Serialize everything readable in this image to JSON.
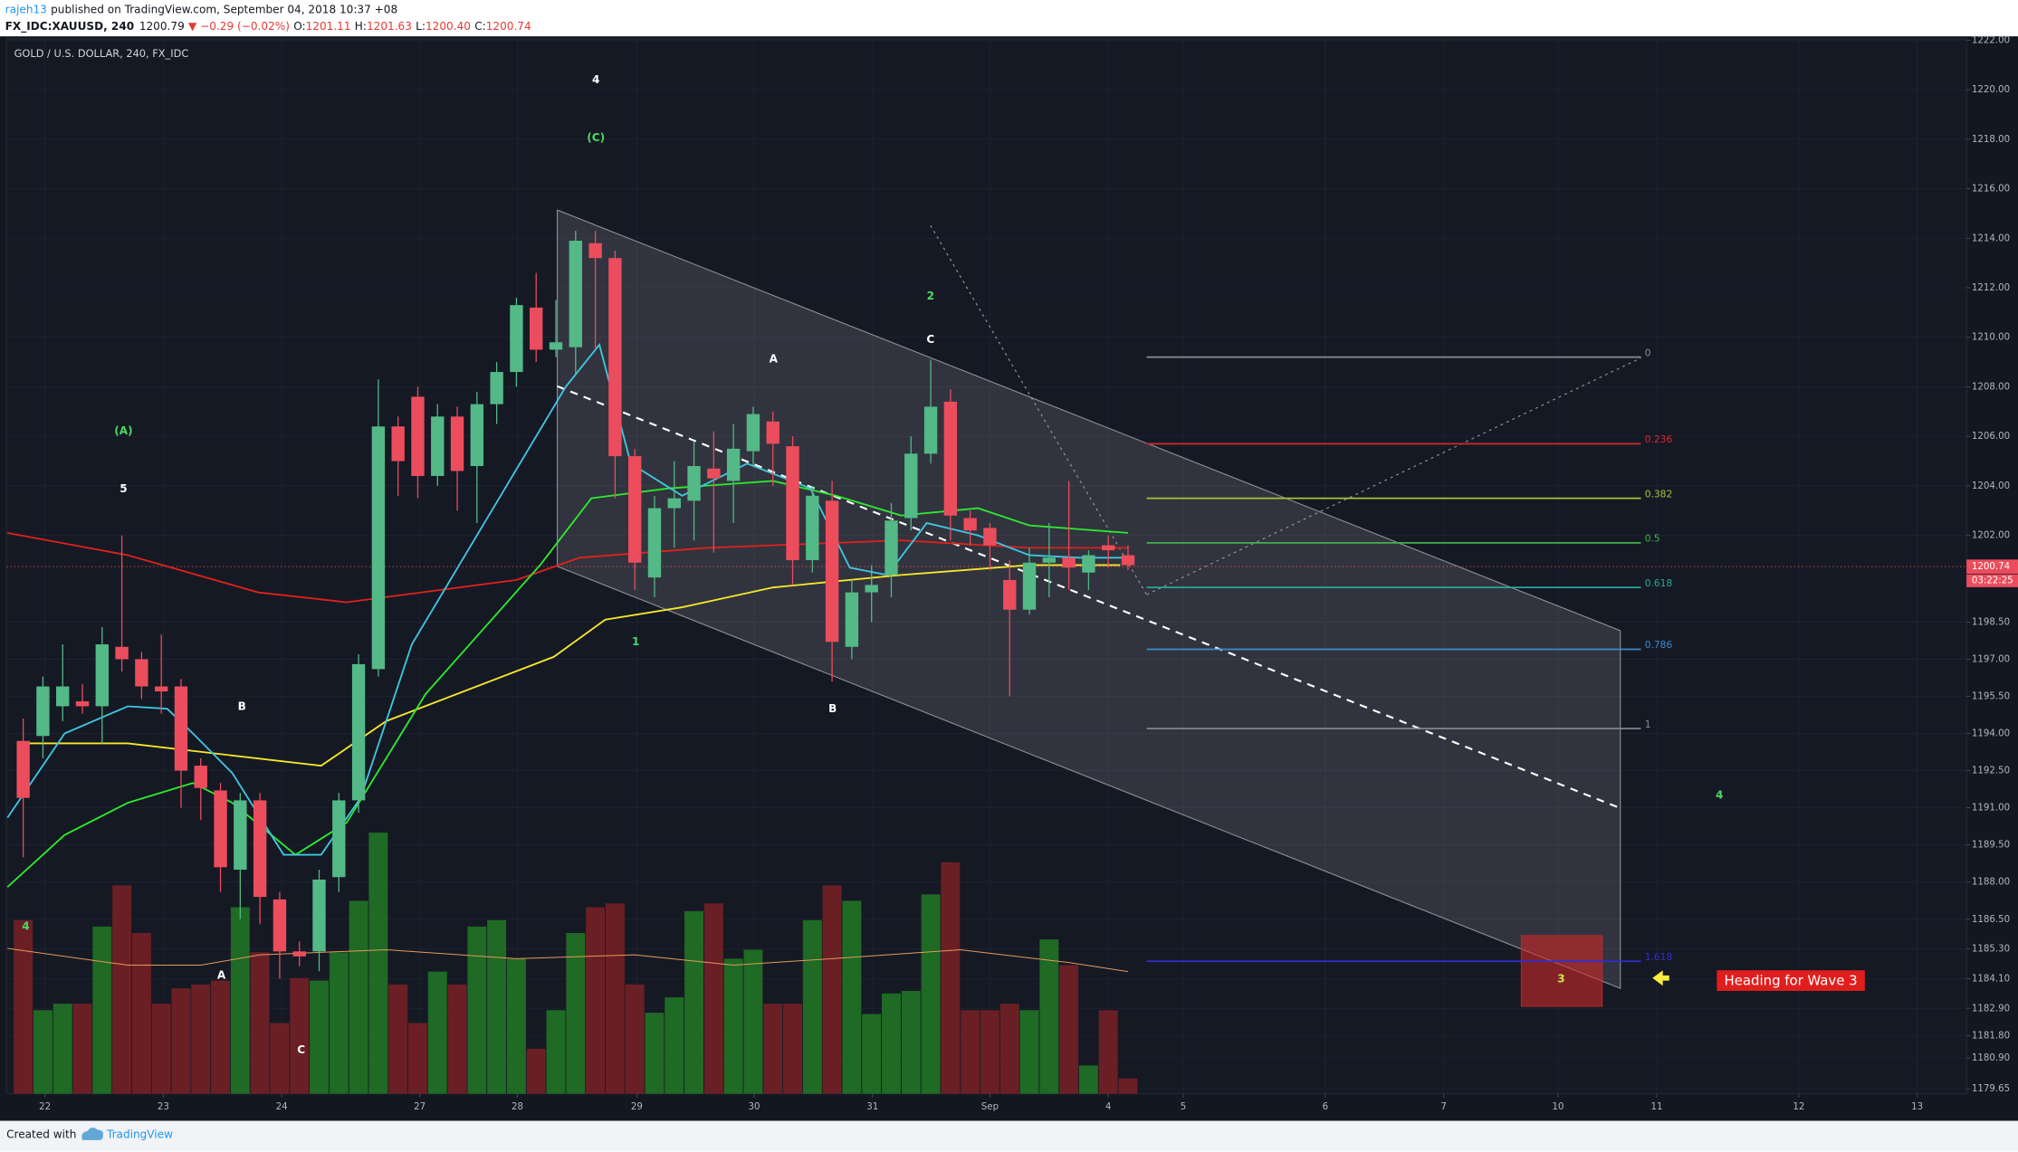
{
  "header": {
    "user": "rajeh13",
    "published": "published on TradingView.com, September 04, 2018 10:37 +08",
    "symbol": "FX_IDC:XAUUSD, 240",
    "price": "1200.79",
    "change": "▼ −0.29 (−0.02%)",
    "ohlc": [
      {
        "key": "O:",
        "value": "1201.11"
      },
      {
        "key": "H:",
        "value": "1201.63"
      },
      {
        "key": "L:",
        "value": "1200.40"
      },
      {
        "key": "C:",
        "value": "1200.74"
      }
    ]
  },
  "chart_data": {
    "type": "candlestick",
    "title": "GOLD / U.S. DOLLAR, 240, FX_IDC",
    "colors": {
      "up": "#53b987",
      "down": "#eb4d5c",
      "volume_up": "#1f6a24",
      "volume_down": "#6a1f25"
    },
    "open": [
      1193.7,
      1193.9,
      1195.1,
      1195.3,
      1195.1,
      1197.5,
      1197.0,
      1195.9,
      1195.9,
      1192.7,
      1191.7,
      1188.5,
      1191.3,
      1187.3,
      1185.2,
      1185.2,
      1188.2,
      1191.3,
      1196.6,
      1206.4,
      1207.6,
      1204.4,
      1206.8,
      1204.8,
      1207.3,
      1208.6,
      1211.2,
      1209.5,
      1209.6,
      1213.8,
      1213.2,
      1205.2,
      1200.3,
      1203.1,
      1203.4,
      1204.7,
      1204.2,
      1205.4,
      1206.6,
      1205.6,
      1201.0,
      1203.4,
      1197.5,
      1199.7,
      1200.4,
      1202.7,
      1205.3,
      1207.4,
      1202.7,
      1202.3,
      1200.2,
      1199.0,
      1200.9,
      1201.1,
      1200.5,
      1201.6,
      1201.2
    ],
    "high": [
      1194.6,
      1196.3,
      1197.6,
      1196.0,
      1198.3,
      1202.0,
      1197.3,
      1198.0,
      1196.2,
      1193.0,
      1192.0,
      1191.6,
      1191.6,
      1187.6,
      1185.6,
      1188.5,
      1191.6,
      1197.2,
      1208.3,
      1206.8,
      1208.0,
      1207.3,
      1207.2,
      1207.8,
      1209.0,
      1211.6,
      1212.6,
      1211.5,
      1214.3,
      1214.3,
      1213.5,
      1205.5,
      1203.6,
      1205.0,
      1205.8,
      1206.2,
      1206.5,
      1207.2,
      1207.0,
      1206.0,
      1204.0,
      1204.2,
      1200.2,
      1200.8,
      1203.3,
      1206.0,
      1209.1,
      1207.9,
      1203.0,
      1202.5,
      1201.0,
      1201.5,
      1202.5,
      1204.2,
      1201.4,
      1202.0,
      1201.6
    ],
    "low": [
      1189.0,
      1193.0,
      1194.5,
      1194.8,
      1193.6,
      1196.5,
      1195.4,
      1194.8,
      1191.0,
      1190.5,
      1187.6,
      1186.5,
      1186.3,
      1184.1,
      1184.6,
      1184.4,
      1187.6,
      1190.8,
      1196.3,
      1203.6,
      1203.5,
      1204.0,
      1203.0,
      1202.5,
      1206.5,
      1208.0,
      1209.0,
      1209.2,
      1208.5,
      1209.5,
      1203.5,
      1199.8,
      1199.5,
      1201.5,
      1201.8,
      1201.3,
      1202.5,
      1204.8,
      1204.0,
      1200.0,
      1200.5,
      1196.1,
      1197.0,
      1198.5,
      1199.5,
      1202.2,
      1204.9,
      1201.8,
      1201.6,
      1200.6,
      1195.5,
      1198.8,
      1199.5,
      1199.8,
      1199.8,
      1200.7,
      1200.6
    ],
    "close": [
      1191.4,
      1195.9,
      1195.9,
      1195.1,
      1197.6,
      1197.0,
      1195.9,
      1195.7,
      1192.5,
      1191.8,
      1188.6,
      1191.3,
      1187.4,
      1185.2,
      1185.0,
      1188.1,
      1191.3,
      1196.8,
      1206.4,
      1205.0,
      1204.4,
      1206.8,
      1204.6,
      1207.3,
      1208.6,
      1211.3,
      1209.5,
      1209.8,
      1213.9,
      1213.2,
      1205.2,
      1200.9,
      1203.1,
      1203.5,
      1204.8,
      1204.3,
      1205.5,
      1206.9,
      1205.7,
      1201.0,
      1203.6,
      1197.7,
      1199.7,
      1200.0,
      1202.6,
      1205.3,
      1207.2,
      1202.8,
      1202.2,
      1201.6,
      1199.0,
      1200.9,
      1201.1,
      1200.7,
      1201.2,
      1201.4,
      1200.8
    ],
    "volume": [
      135,
      65,
      70,
      70,
      130,
      162,
      125,
      70,
      82,
      85,
      88,
      145,
      110,
      55,
      90,
      88,
      110,
      150,
      203,
      85,
      55,
      95,
      85,
      130,
      135,
      105,
      35,
      65,
      125,
      145,
      148,
      85,
      63,
      75,
      142,
      148,
      105,
      112,
      70,
      70,
      135,
      162,
      150,
      62,
      78,
      80,
      155,
      180,
      65,
      65,
      70,
      65,
      120,
      100,
      22,
      65,
      12
    ],
    "series": [
      {
        "color": "#e0201b",
        "x": [
          -0.8,
          5.3,
          11.9,
          16.4,
          25,
          28.2,
          34.7,
          44.5,
          51,
          56
        ],
        "values": [
          1202.1,
          1201.2,
          1199.7,
          1199.3,
          1200.2,
          1201.1,
          1201.5,
          1201.8,
          1201.5,
          1201.5
        ]
      },
      {
        "color": "#f5e82a",
        "x": [
          0.1,
          5.3,
          15.1,
          18.4,
          26.9,
          29.5,
          33.4,
          38,
          44.5,
          51,
          55.6
        ],
        "values": [
          1193.6,
          1193.6,
          1192.7,
          1194.5,
          1197.1,
          1198.6,
          1199.1,
          1199.9,
          1200.4,
          1200.8,
          1200.8
        ]
      },
      {
        "color": "#2ee82e",
        "x": [
          -0.8,
          2.1,
          5.3,
          8.6,
          10.6,
          13.8,
          16.4,
          20.4,
          26.2,
          28.8,
          32.7,
          38,
          41.2,
          44.5,
          48.4,
          51,
          56
        ],
        "values": [
          1187.8,
          1189.9,
          1191.2,
          1192.0,
          1191.2,
          1189.1,
          1190.4,
          1195.6,
          1200.8,
          1203.5,
          1203.9,
          1204.2,
          1203.6,
          1202.8,
          1203.1,
          1202.4,
          1202.1
        ]
      },
      {
        "color": "#3fc6e0",
        "x": [
          -0.8,
          2.1,
          5.3,
          7.3,
          8.6,
          10.6,
          13.2,
          15.1,
          17.1,
          19.7,
          23.6,
          27.5,
          29.2,
          30.8,
          33.4,
          36.7,
          39.9,
          41.9,
          43.8,
          45.8,
          48.4,
          51,
          53.6,
          56
        ],
        "values": [
          1190.6,
          1194.0,
          1195.1,
          1195.0,
          1194.0,
          1192.4,
          1189.1,
          1189.1,
          1191.4,
          1197.6,
          1202.8,
          1208.0,
          1209.7,
          1204.9,
          1203.6,
          1204.9,
          1203.9,
          1200.7,
          1200.4,
          1202.5,
          1202.0,
          1201.2,
          1201.1,
          1201.1
        ]
      },
      {
        "color": "#e59a5c",
        "axis": "volume",
        "x": [
          -0.8,
          5.3,
          9,
          12,
          18.4,
          25,
          31,
          36,
          41,
          47.5,
          53,
          56
        ],
        "values": [
          113,
          100,
          100,
          108,
          112,
          105,
          108,
          100,
          105,
          112,
          102,
          95
        ]
      }
    ],
    "last_price": 1200.74,
    "countdown": "03:22:25",
    "xlim": [
      -0.85,
      98.5
    ],
    "xticks": [
      {
        "value": 1.1,
        "label": "22"
      },
      {
        "value": 7.1,
        "label": "23"
      },
      {
        "value": 13.1,
        "label": "24"
      },
      {
        "value": 20.1,
        "label": "27"
      },
      {
        "value": 25.05,
        "label": "28"
      },
      {
        "value": 31.1,
        "label": "29"
      },
      {
        "value": 37.05,
        "label": "30"
      },
      {
        "value": 43.05,
        "label": "31"
      },
      {
        "value": 49,
        "label": "Sep"
      },
      {
        "value": 55,
        "label": "4"
      },
      {
        "value": 58.8,
        "label": "5"
      },
      {
        "value": 66,
        "label": "6"
      },
      {
        "value": 72,
        "label": "7"
      },
      {
        "value": 77.8,
        "label": "10"
      },
      {
        "value": 82.8,
        "label": "11"
      },
      {
        "value": 90,
        "label": "12"
      },
      {
        "value": 96,
        "label": "13"
      }
    ],
    "ylim": [
      1179.45,
      1222.05
    ],
    "yticks": [
      {
        "value": 1222,
        "label": "1222.00"
      },
      {
        "value": 1220,
        "label": "1220.00"
      },
      {
        "value": 1218,
        "label": "1218.00"
      },
      {
        "value": 1216,
        "label": "1216.00"
      },
      {
        "value": 1214,
        "label": "1214.00"
      },
      {
        "value": 1212,
        "label": "1212.00"
      },
      {
        "value": 1210,
        "label": "1210.00"
      },
      {
        "value": 1208,
        "label": "1208.00"
      },
      {
        "value": 1206,
        "label": "1206.00"
      },
      {
        "value": 1204,
        "label": "1204.00"
      },
      {
        "value": 1202,
        "label": "1202.00"
      },
      {
        "value": 1198.5,
        "label": "1198.50"
      },
      {
        "value": 1197,
        "label": "1197.00"
      },
      {
        "value": 1195.5,
        "label": "1195.50"
      },
      {
        "value": 1194,
        "label": "1194.00"
      },
      {
        "value": 1192.5,
        "label": "1192.50"
      },
      {
        "value": 1191,
        "label": "1191.00"
      },
      {
        "value": 1189.5,
        "label": "1189.50"
      },
      {
        "value": 1188,
        "label": "1188.00"
      },
      {
        "value": 1186.5,
        "label": "1186.50"
      },
      {
        "value": 1185.3,
        "label": "1185.30"
      },
      {
        "value": 1184.1,
        "label": "1184.10"
      },
      {
        "value": 1182.9,
        "label": "1182.90"
      },
      {
        "value": 1181.8,
        "label": "1181.80"
      },
      {
        "value": 1180.9,
        "label": "1180.90"
      },
      {
        "value": 1179.65,
        "label": "1179.65"
      }
    ],
    "grid": true,
    "fib": [
      {
        "level": 0,
        "price": 1209.2,
        "color": "#8a8d96"
      },
      {
        "level": 0.236,
        "price": 1205.7,
        "color": "#d3282f"
      },
      {
        "level": 0.382,
        "price": 1203.5,
        "color": "#a6c33a"
      },
      {
        "level": 0.5,
        "price": 1201.7,
        "color": "#43b04a"
      },
      {
        "level": 0.618,
        "price": 1199.9,
        "color": "#26a69a"
      },
      {
        "level": 0.786,
        "price": 1197.4,
        "color": "#3d8bd0"
      },
      {
        "level": 1,
        "price": 1194.2,
        "color": "#8a8d96"
      },
      {
        "level": 1.618,
        "price": 1184.8,
        "color": "#2f2fd0"
      }
    ],
    "annotations": [
      {
        "text": "4",
        "color": "#ffffff"
      },
      {
        "text": "(C)",
        "color": "#4cd964"
      },
      {
        "text": "2",
        "color": "#4cd964"
      },
      {
        "text": "C",
        "color": "#ffffff"
      },
      {
        "text": "A",
        "color": "#ffffff"
      },
      {
        "text": "(A)",
        "color": "#4cd964"
      },
      {
        "text": "5",
        "color": "#ffffff"
      },
      {
        "text": "1",
        "color": "#4cd964"
      },
      {
        "text": "B",
        "color": "#ffffff"
      },
      {
        "text": "B",
        "color": "#ffffff"
      },
      {
        "text": "A",
        "color": "#ffffff"
      },
      {
        "text": "4",
        "color": "#4cd964"
      },
      {
        "text": "C",
        "color": "#ffffff"
      },
      {
        "text": "4",
        "color": "#4cd964"
      },
      {
        "text": "3",
        "color": "#c8e64c"
      }
    ],
    "callout": "Heading for Wave 3"
  },
  "footer": {
    "created": "Created with",
    "brand": "TradingView"
  }
}
